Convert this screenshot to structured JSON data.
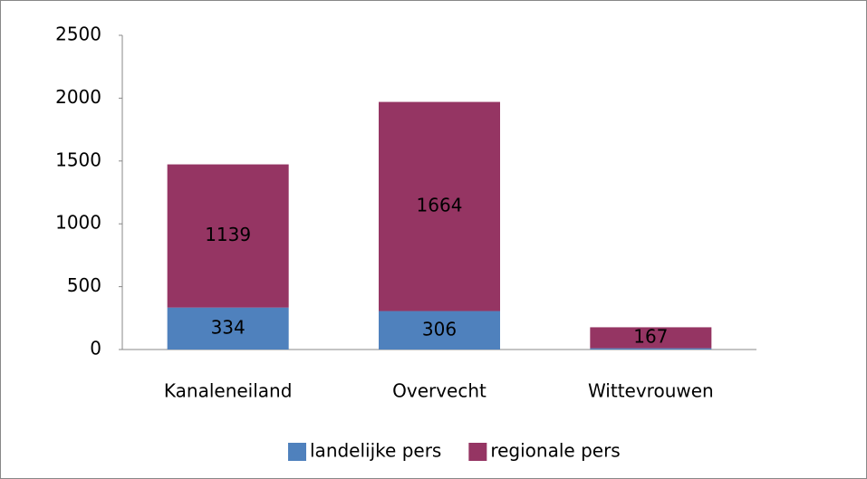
{
  "chart_data": {
    "type": "bar",
    "stacked": true,
    "categories": [
      "Kanaleneiland",
      "Overvecht",
      "Wittevrouwen"
    ],
    "series": [
      {
        "name": "landelijke pers",
        "color": "#4f81bd",
        "values": [
          334,
          306,
          10
        ]
      },
      {
        "name": "regionale pers",
        "color": "#953563",
        "values": [
          1139,
          1664,
          167
        ]
      }
    ],
    "ylim": [
      0,
      2500
    ],
    "yticks": [
      0,
      500,
      1000,
      1500,
      2000,
      2500
    ],
    "grid": false,
    "legend": "bottom"
  }
}
